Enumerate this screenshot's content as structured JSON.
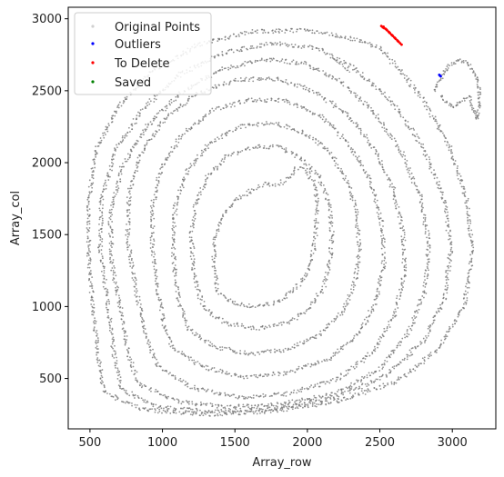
{
  "chart_data": {
    "type": "scatter",
    "xlabel": "Array_row",
    "ylabel": "Array_col",
    "xlim": [
      350,
      3300
    ],
    "ylim": [
      150,
      3080
    ],
    "xticks": [
      500,
      1000,
      1500,
      2000,
      2500,
      3000
    ],
    "yticks": [
      500,
      1000,
      1500,
      2000,
      2500,
      3000
    ],
    "legend_position": "top-left",
    "legend": [
      {
        "name": "Original Points",
        "color": "#d9d9d9"
      },
      {
        "name": "Outliers",
        "color": "#0000ff"
      },
      {
        "name": "To Delete",
        "color": "#ff0000"
      },
      {
        "name": "Saved",
        "color": "#008000"
      }
    ],
    "series": [
      {
        "name": "Original Points",
        "color": "#777777",
        "rings": [
          {
            "points": [
              [
                1385,
                1100
              ],
              [
                1480,
                1025
              ],
              [
                1620,
                1000
              ],
              [
                1780,
                1025
              ],
              [
                1900,
                1100
              ],
              [
                1990,
                1220
              ],
              [
                2040,
                1380
              ],
              [
                2060,
                1540
              ],
              [
                2065,
                1720
              ],
              [
                2045,
                1860
              ],
              [
                1990,
                1955
              ],
              [
                1925,
                1965
              ],
              [
                1870,
                1900
              ],
              [
                1805,
                1850
              ],
              [
                1700,
                1850
              ],
              [
                1600,
                1800
              ],
              [
                1480,
                1720
              ],
              [
                1400,
                1600
              ],
              [
                1360,
                1450
              ],
              [
                1350,
                1290
              ],
              [
                1385,
                1100
              ]
            ]
          },
          {
            "points": [
              [
                1290,
                980
              ],
              [
                1450,
                880
              ],
              [
                1650,
                850
              ],
              [
                1850,
                880
              ],
              [
                2010,
                980
              ],
              [
                2110,
                1130
              ],
              [
                2160,
                1320
              ],
              [
                2170,
                1520
              ],
              [
                2150,
                1720
              ],
              [
                2080,
                1900
              ],
              [
                1960,
                2030
              ],
              [
                1800,
                2110
              ],
              [
                1620,
                2110
              ],
              [
                1440,
                2040
              ],
              [
                1310,
                1900
              ],
              [
                1230,
                1720
              ],
              [
                1200,
                1520
              ],
              [
                1210,
                1300
              ],
              [
                1240,
                1120
              ],
              [
                1290,
                980
              ]
            ]
          },
          {
            "points": [
              [
                1180,
                850
              ],
              [
                1360,
                720
              ],
              [
                1600,
                670
              ],
              [
                1860,
                700
              ],
              [
                2080,
                800
              ],
              [
                2240,
                960
              ],
              [
                2330,
                1170
              ],
              [
                2360,
                1400
              ],
              [
                2340,
                1650
              ],
              [
                2270,
                1880
              ],
              [
                2150,
                2080
              ],
              [
                1980,
                2210
              ],
              [
                1760,
                2280
              ],
              [
                1530,
                2250
              ],
              [
                1320,
                2130
              ],
              [
                1170,
                1940
              ],
              [
                1090,
                1700
              ],
              [
                1070,
                1450
              ],
              [
                1090,
                1180
              ],
              [
                1120,
                1000
              ],
              [
                1180,
                850
              ]
            ]
          },
          {
            "points": [
              [
                1070,
                720
              ],
              [
                1280,
                580
              ],
              [
                1560,
                510
              ],
              [
                1860,
                540
              ],
              [
                2150,
                640
              ],
              [
                2360,
                820
              ],
              [
                2480,
                1050
              ],
              [
                2530,
                1320
              ],
              [
                2510,
                1600
              ],
              [
                2430,
                1880
              ],
              [
                2290,
                2130
              ],
              [
                2100,
                2320
              ],
              [
                1860,
                2430
              ],
              [
                1600,
                2440
              ],
              [
                1340,
                2360
              ],
              [
                1130,
                2190
              ],
              [
                990,
                1960
              ],
              [
                930,
                1690
              ],
              [
                930,
                1400
              ],
              [
                970,
                1100
              ],
              [
                1010,
                880
              ],
              [
                1070,
                720
              ]
            ]
          },
          {
            "points": [
              [
                960,
                590
              ],
              [
                1200,
                440
              ],
              [
                1510,
                370
              ],
              [
                1860,
                390
              ],
              [
                2200,
                490
              ],
              [
                2450,
                680
              ],
              [
                2600,
                930
              ],
              [
                2670,
                1220
              ],
              [
                2660,
                1520
              ],
              [
                2590,
                1820
              ],
              [
                2460,
                2100
              ],
              [
                2280,
                2330
              ],
              [
                2060,
                2490
              ],
              [
                1800,
                2580
              ],
              [
                1520,
                2580
              ],
              [
                1240,
                2480
              ],
              [
                1010,
                2300
              ],
              [
                850,
                2060
              ],
              [
                770,
                1790
              ],
              [
                760,
                1480
              ],
              [
                810,
                1150
              ],
              [
                880,
                820
              ],
              [
                960,
                590
              ]
            ]
          },
          {
            "points": [
              [
                840,
                460
              ],
              [
                1100,
                340
              ],
              [
                1440,
                300
              ],
              [
                1820,
                320
              ],
              [
                2200,
                400
              ],
              [
                2500,
                570
              ],
              [
                2700,
                820
              ],
              [
                2810,
                1110
              ],
              [
                2840,
                1430
              ],
              [
                2780,
                1760
              ],
              [
                2650,
                2070
              ],
              [
                2460,
                2350
              ],
              [
                2240,
                2560
              ],
              [
                1980,
                2690
              ],
              [
                1690,
                2720
              ],
              [
                1390,
                2640
              ],
              [
                1110,
                2470
              ],
              [
                880,
                2240
              ],
              [
                720,
                1960
              ],
              [
                640,
                1650
              ],
              [
                650,
                1300
              ],
              [
                720,
                950
              ],
              [
                770,
                640
              ],
              [
                840,
                460
              ]
            ]
          },
          {
            "points": [
              [
                720,
                420
              ],
              [
                980,
                300
              ],
              [
                1350,
                270
              ],
              [
                1780,
                290
              ],
              [
                2200,
                370
              ],
              [
                2560,
                530
              ],
              [
                2810,
                770
              ],
              [
                2950,
                1070
              ],
              [
                2990,
                1400
              ],
              [
                2940,
                1760
              ],
              [
                2790,
                2120
              ],
              [
                2580,
                2430
              ],
              [
                2330,
                2650
              ],
              [
                2060,
                2800
              ],
              [
                1760,
                2830
              ],
              [
                1440,
                2770
              ],
              [
                1130,
                2620
              ],
              [
                870,
                2380
              ],
              [
                680,
                2090
              ],
              [
                580,
                1760
              ],
              [
                570,
                1400
              ],
              [
                620,
                1040
              ],
              [
                660,
                700
              ],
              [
                720,
                420
              ]
            ]
          },
          {
            "points": [
              [
                600,
                400
              ],
              [
                880,
                280
              ],
              [
                1280,
                250
              ],
              [
                1750,
                270
              ],
              [
                2200,
                340
              ],
              [
                2620,
                480
              ],
              [
                2900,
                700
              ],
              [
                3080,
                1000
              ],
              [
                3140,
                1360
              ],
              [
                3100,
                1740
              ],
              [
                2980,
                2110
              ],
              [
                2800,
                2440
              ],
              [
                2620,
                2660
              ],
              [
                2500,
                2800
              ],
              [
                2280,
                2870
              ],
              [
                1950,
                2920
              ],
              [
                1600,
                2910
              ],
              [
                1250,
                2820
              ],
              [
                930,
                2640
              ],
              [
                700,
                2390
              ],
              [
                540,
                2080
              ],
              [
                490,
                1740
              ],
              [
                490,
                1400
              ],
              [
                520,
                1000
              ],
              [
                560,
                640
              ],
              [
                600,
                400
              ]
            ]
          }
        ],
        "lobe": [
          [
            2880,
            2500
          ],
          [
            2930,
            2610
          ],
          [
            2980,
            2680
          ],
          [
            3040,
            2710
          ],
          [
            3100,
            2700
          ],
          [
            3140,
            2640
          ],
          [
            3180,
            2560
          ],
          [
            3190,
            2420
          ],
          [
            3170,
            2300
          ],
          [
            3120,
            2460
          ],
          [
            3060,
            2430
          ],
          [
            3010,
            2380
          ],
          [
            2960,
            2420
          ],
          [
            2920,
            2480
          ]
        ],
        "cut_mark": [
          [
            2180,
            2720
          ],
          [
            2240,
            2680
          ],
          [
            2300,
            2620
          ]
        ]
      },
      {
        "name": "Outliers",
        "color": "#0000ff",
        "points": [
          [
            2910,
            2610
          ],
          [
            2915,
            2605
          ],
          [
            2920,
            2600
          ]
        ]
      },
      {
        "name": "To Delete",
        "color": "#ff0000",
        "points": [
          [
            2510,
            2950
          ],
          [
            2520,
            2940
          ],
          [
            2530,
            2935
          ],
          [
            2540,
            2930
          ],
          [
            2550,
            2920
          ],
          [
            2560,
            2910
          ],
          [
            2570,
            2900
          ],
          [
            2580,
            2890
          ],
          [
            2590,
            2880
          ],
          [
            2600,
            2870
          ],
          [
            2610,
            2860
          ],
          [
            2620,
            2850
          ],
          [
            2630,
            2840
          ],
          [
            2640,
            2830
          ],
          [
            2650,
            2820
          ],
          [
            2525,
            2945
          ],
          [
            2545,
            2925
          ],
          [
            2565,
            2905
          ],
          [
            2585,
            2885
          ],
          [
            2605,
            2865
          ],
          [
            2625,
            2845
          ]
        ]
      },
      {
        "name": "Saved",
        "color": "#008000",
        "points": []
      }
    ]
  }
}
